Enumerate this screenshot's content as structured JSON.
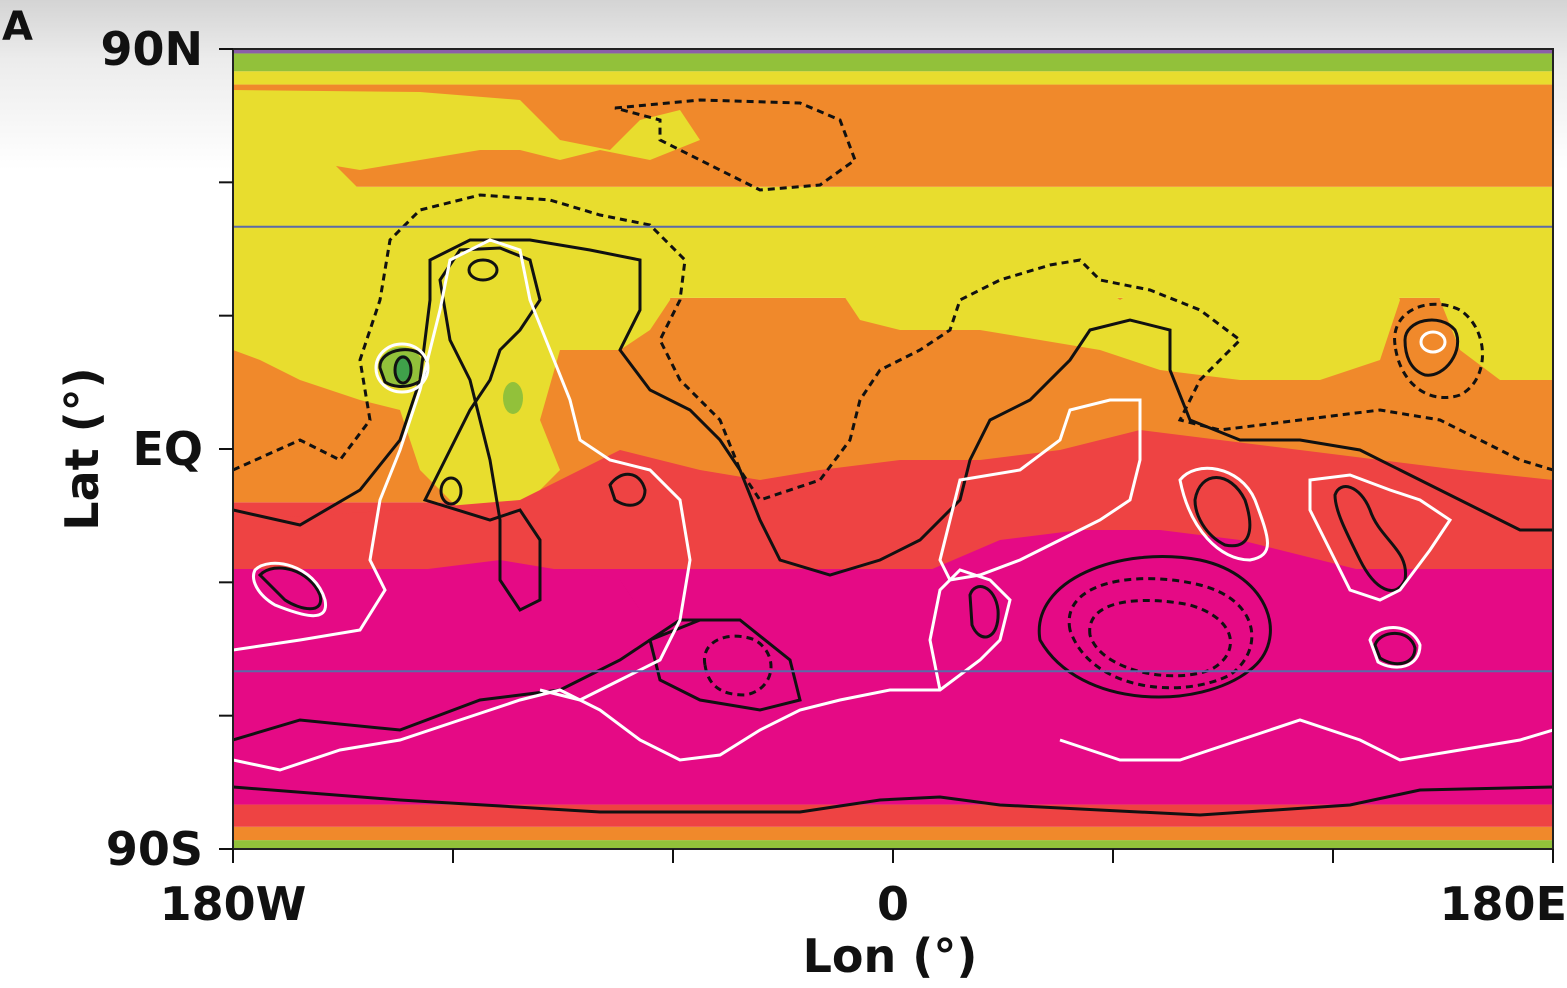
{
  "chart_data": {
    "type": "heatmap",
    "panel_label": "A",
    "title": "",
    "xlabel": "Lon (°)",
    "ylabel": "Lat (°)",
    "x_ticks": [
      {
        "value": -180,
        "label": "180W"
      },
      {
        "value": -120,
        "label": ""
      },
      {
        "value": -60,
        "label": ""
      },
      {
        "value": 0,
        "label": "0"
      },
      {
        "value": 60,
        "label": ""
      },
      {
        "value": 120,
        "label": ""
      },
      {
        "value": 180,
        "label": "180E"
      }
    ],
    "y_ticks": [
      {
        "value": 90,
        "label": "90N"
      },
      {
        "value": 60,
        "label": ""
      },
      {
        "value": 30,
        "label": ""
      },
      {
        "value": 0,
        "label": "EQ"
      },
      {
        "value": -30,
        "label": ""
      },
      {
        "value": -60,
        "label": ""
      },
      {
        "value": -90,
        "label": "90S"
      }
    ],
    "xlim": [
      -180,
      180
    ],
    "ylim": [
      -90,
      90
    ],
    "reference_lines": [
      {
        "orientation": "horizontal",
        "lat": 50,
        "color": "#5b6aa8"
      },
      {
        "orientation": "horizontal",
        "lat": -50,
        "color": "#5b6aa8"
      }
    ],
    "fill_colors": [
      "#e50a85",
      "#ee4343",
      "#f0892b",
      "#e8dd2e",
      "#92c13a",
      "#3fa14a"
    ],
    "contour_colors": {
      "solid": "#111111",
      "dashed": "#111111",
      "white": "#ffffff"
    },
    "lat_bands": [
      {
        "from": -90,
        "to": -88,
        "color": "#92c13a"
      },
      {
        "from": -88,
        "to": -85,
        "color": "#f0892b"
      },
      {
        "from": -85,
        "to": -80,
        "color": "#ee4343"
      },
      {
        "from": -80,
        "to": -27,
        "color": "#e50a85"
      },
      {
        "from": -27,
        "to": -12,
        "color": "#ee4343"
      },
      {
        "from": -12,
        "to": 34,
        "color": "#f0892b"
      },
      {
        "from": 34,
        "to": 59,
        "color": "#e8dd2e"
      },
      {
        "from": 59,
        "to": 82,
        "color": "#f0892b"
      },
      {
        "from": 82,
        "to": 85,
        "color": "#e8dd2e"
      },
      {
        "from": 85,
        "to": 89,
        "color": "#92c13a"
      },
      {
        "from": 89,
        "to": 90,
        "color": "#8b5ea8"
      }
    ]
  }
}
